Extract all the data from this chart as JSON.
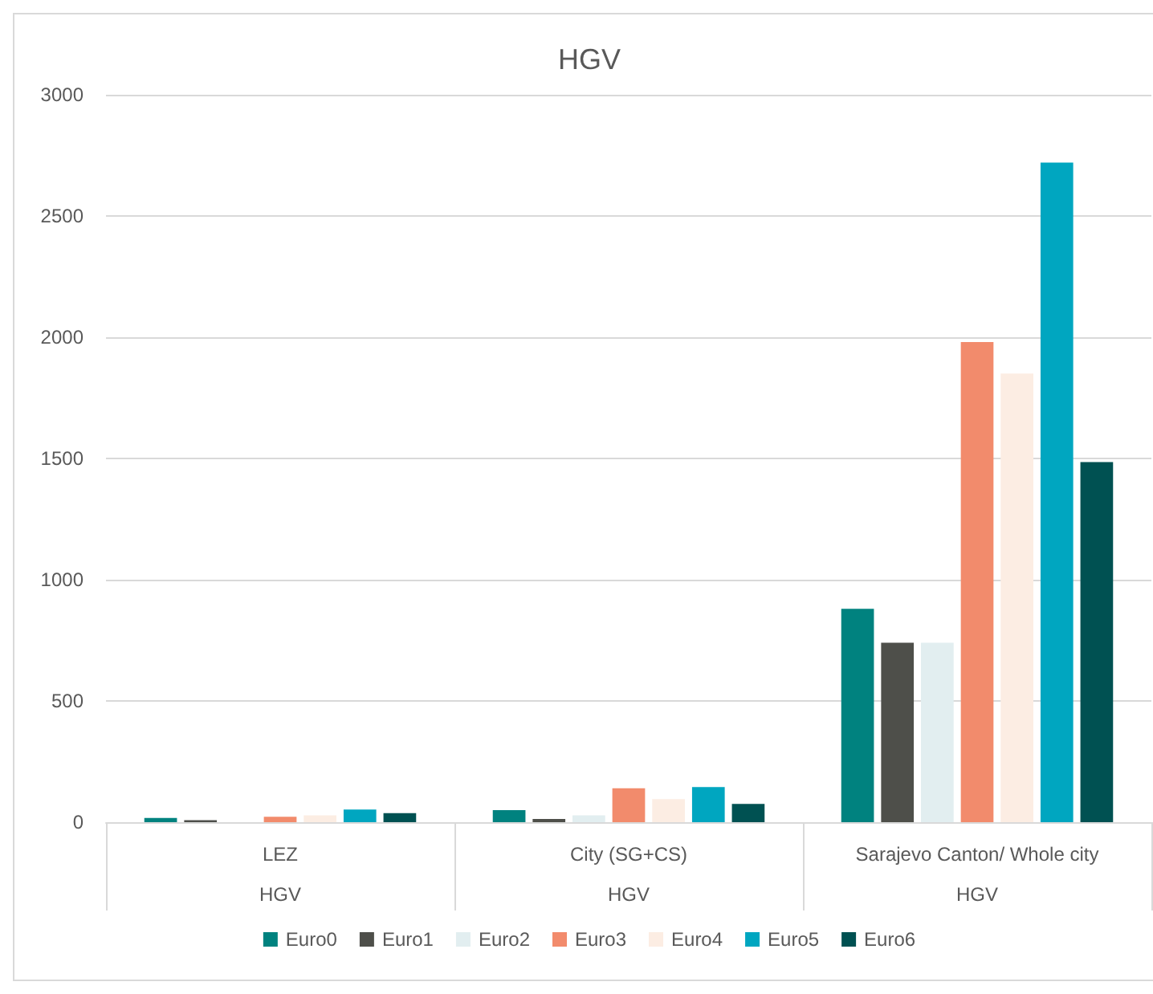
{
  "chart_data": {
    "type": "bar",
    "title": "HGV",
    "categories": [
      "LEZ",
      "City (SG+CS)",
      "Sarajevo Canton/ Whole city"
    ],
    "annotations": [
      "HGV",
      "HGV",
      "HGV"
    ],
    "series": [
      {
        "name": "Euro0",
        "color": "#00827f",
        "values": [
          17,
          50,
          880
        ]
      },
      {
        "name": "Euro1",
        "color": "#4e4f4a",
        "values": [
          8,
          13,
          740
        ]
      },
      {
        "name": "Euro2",
        "color": "#e2eef0",
        "values": [
          0,
          28,
          740
        ]
      },
      {
        "name": "Euro3",
        "color": "#f28b6c",
        "values": [
          22,
          140,
          1980
        ]
      },
      {
        "name": "Euro4",
        "color": "#fcede3",
        "values": [
          28,
          95,
          1850
        ]
      },
      {
        "name": "Euro5",
        "color": "#00a6c0",
        "values": [
          52,
          145,
          2720
        ]
      },
      {
        "name": "Euro6",
        "color": "#005152",
        "values": [
          37,
          75,
          1485
        ]
      }
    ],
    "ylim": [
      0,
      3000
    ],
    "yticks": [
      0,
      500,
      1000,
      1500,
      2000,
      2500,
      3000
    ],
    "grid": true,
    "legend": "bottom"
  }
}
